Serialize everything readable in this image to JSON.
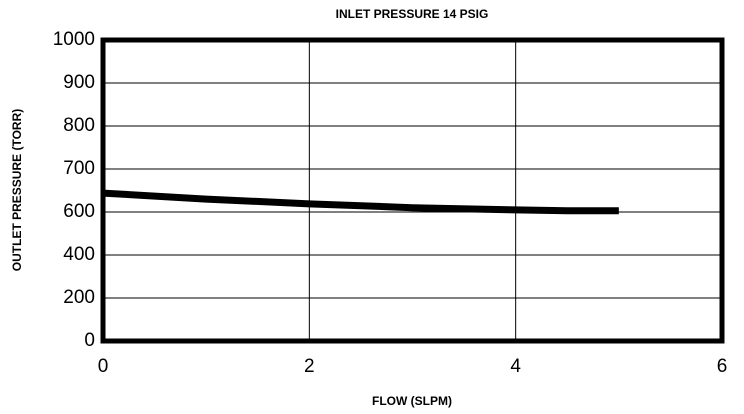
{
  "chart_data": {
    "type": "line",
    "title": "INLET PRESSURE 14 PSIG",
    "x_label": "FLOW (SLPM)",
    "y_label": "OUTLET PRESSURE (TORR)",
    "x": [
      0,
      1,
      2,
      3,
      4,
      4.5,
      5
    ],
    "series": [
      {
        "color": "#000000",
        "values": [
          644,
          630,
          619,
          610,
          605,
          603,
          603
        ]
      }
    ],
    "xlim": [
      0,
      6
    ],
    "xticks": [
      0,
      2,
      4,
      6
    ],
    "ylim": [
      0,
      1000
    ],
    "yticks": [
      0,
      200,
      400,
      600,
      700,
      800,
      900,
      1000
    ],
    "grid": true
  }
}
